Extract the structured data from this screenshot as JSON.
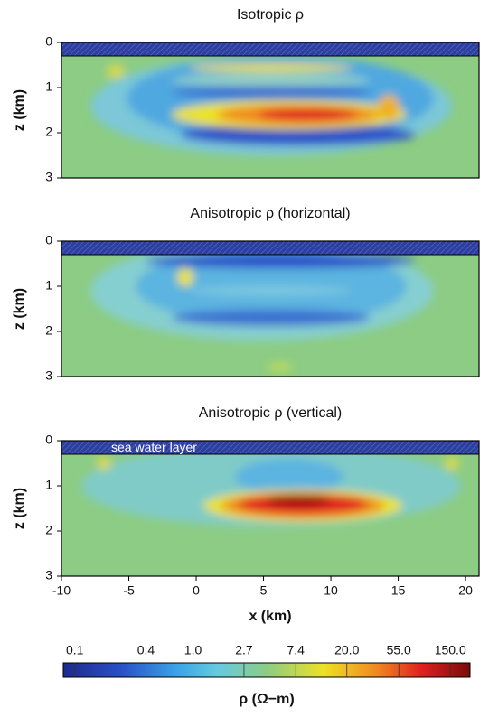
{
  "chart_data": [
    {
      "type": "heatmap",
      "title": "Isotropic ρ",
      "ylabel": "z (km)",
      "xlim": [
        -10,
        21
      ],
      "ylim": [
        3,
        0
      ],
      "yticks": [
        0,
        1,
        2,
        3
      ],
      "sea_water_depth": 0.3
    },
    {
      "type": "heatmap",
      "title": "Anisotropic ρ (horizontal)",
      "ylabel": "z (km)",
      "xlim": [
        -10,
        21
      ],
      "ylim": [
        3,
        0
      ],
      "yticks": [
        0,
        1,
        2,
        3
      ],
      "sea_water_depth": 0.3
    },
    {
      "type": "heatmap",
      "title": "Anisotropic ρ (vertical)",
      "ylabel": "z (km)",
      "xlabel": "x (km)",
      "xlim": [
        -10,
        21
      ],
      "ylim": [
        3,
        0
      ],
      "yticks": [
        0,
        1,
        2,
        3
      ],
      "xticks": [
        -10,
        -5,
        0,
        5,
        10,
        15,
        20
      ],
      "sea_water_depth": 0.3,
      "annotation": "sea water layer",
      "colorbar": {
        "label": "ρ (Ω−m)",
        "log": true,
        "lim": [
          0.08,
          220
        ],
        "ticks": [
          0.1,
          0.4,
          {
            "value": 1,
            "label": "1.0"
          },
          2.7,
          7.4,
          {
            "value": 20,
            "label": "20.0"
          },
          {
            "value": 55,
            "label": "55.0"
          },
          {
            "value": 150,
            "label": "150.0"
          }
        ]
      }
    }
  ]
}
